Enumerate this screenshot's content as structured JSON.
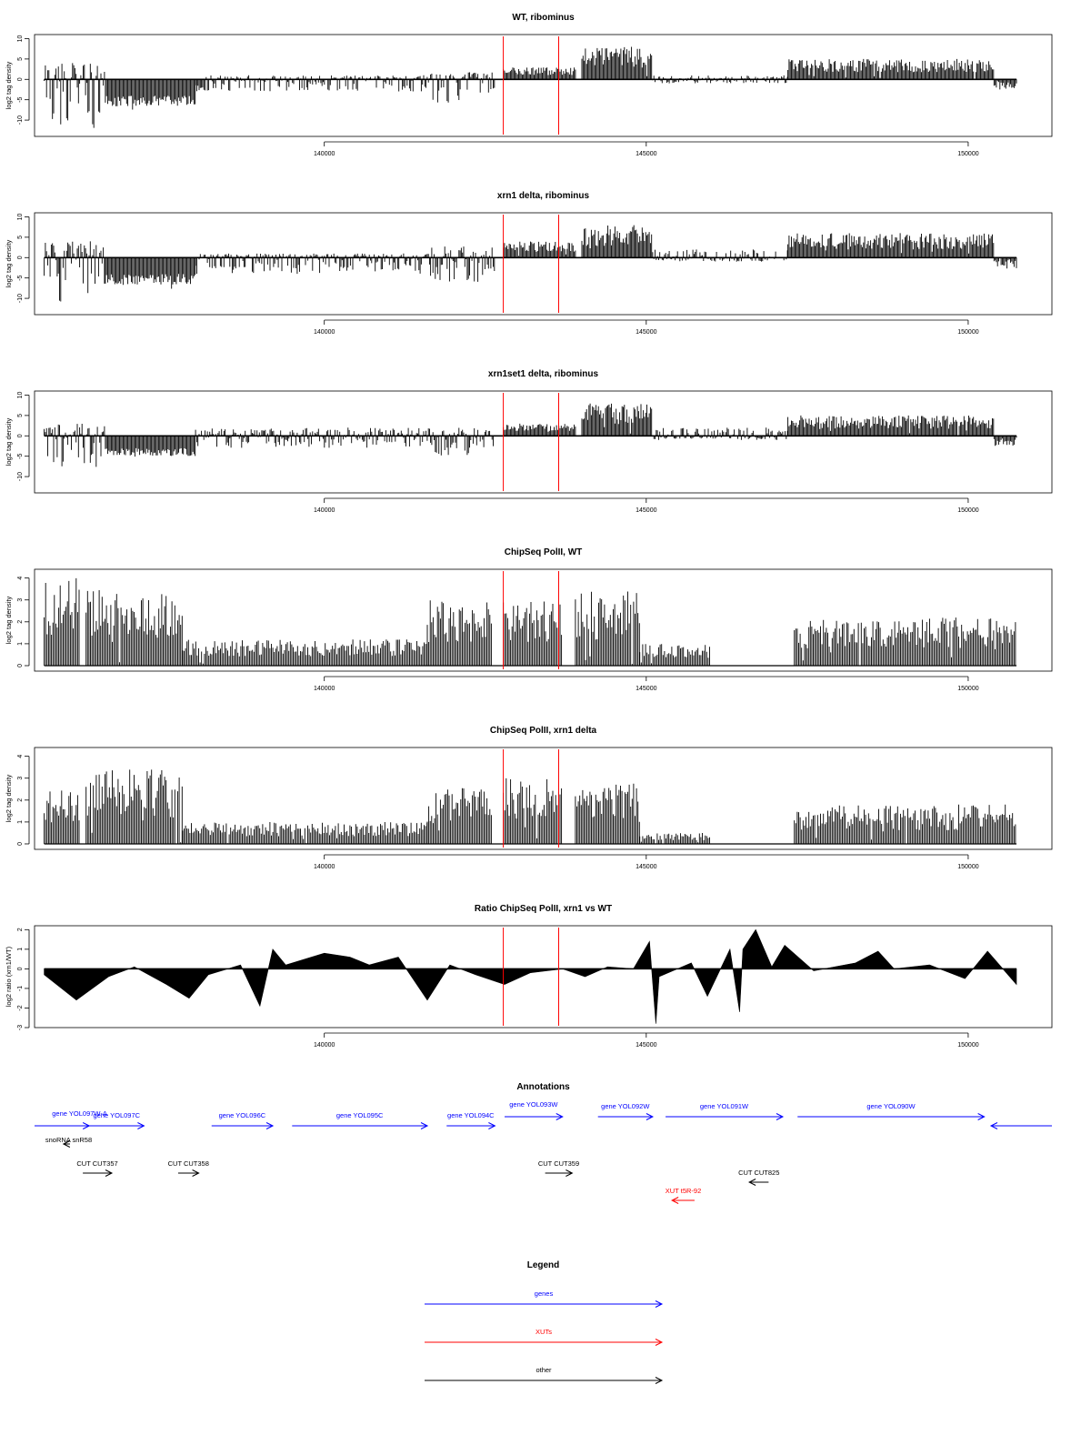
{
  "chart_data": [
    {
      "type": "bar",
      "title": "WT, ribominus",
      "ylabel": "log2 tag density",
      "ylim": [
        -14,
        11
      ],
      "yticks": [
        -10,
        -5,
        0,
        5,
        10
      ],
      "xticks": [
        140000,
        145000,
        150000
      ],
      "xlim": [
        135500,
        151300
      ],
      "markers": [
        142780,
        143640
      ],
      "segments": [
        {
          "x": [
            135650,
            136600
          ],
          "y": [
            -12,
            4
          ]
        },
        {
          "x": [
            136600,
            138000
          ],
          "y": [
            -8,
            -4
          ]
        },
        {
          "x": [
            138000,
            141650
          ],
          "y": [
            -3,
            1
          ]
        },
        {
          "x": [
            141650,
            142650
          ],
          "y": [
            -6,
            2
          ]
        },
        {
          "x": [
            142780,
            143900
          ],
          "y": [
            0,
            3
          ]
        },
        {
          "x": [
            144000,
            145100
          ],
          "y": [
            0,
            8
          ]
        },
        {
          "x": [
            145100,
            147200
          ],
          "y": [
            -1,
            1
          ]
        },
        {
          "x": [
            147200,
            150400
          ],
          "y": [
            0,
            5
          ]
        },
        {
          "x": [
            150400,
            150750
          ],
          "y": [
            -4,
            0
          ]
        }
      ]
    },
    {
      "type": "bar",
      "title": "xrn1 delta, ribominus",
      "ylabel": "log2 tag density",
      "ylim": [
        -14,
        11
      ],
      "yticks": [
        -10,
        -5,
        0,
        5,
        10
      ],
      "xticks": [
        140000,
        145000,
        150000
      ],
      "xlim": [
        135500,
        151300
      ],
      "markers": [
        142780,
        143640
      ],
      "segments": [
        {
          "x": [
            135650,
            136600
          ],
          "y": [
            -11,
            4
          ]
        },
        {
          "x": [
            136600,
            138000
          ],
          "y": [
            -8,
            -4
          ]
        },
        {
          "x": [
            138000,
            141650
          ],
          "y": [
            -4,
            1
          ]
        },
        {
          "x": [
            141650,
            142650
          ],
          "y": [
            -6,
            3
          ]
        },
        {
          "x": [
            142780,
            143900
          ],
          "y": [
            0,
            4
          ]
        },
        {
          "x": [
            144000,
            145100
          ],
          "y": [
            0,
            8
          ]
        },
        {
          "x": [
            145100,
            147200
          ],
          "y": [
            -1,
            2
          ]
        },
        {
          "x": [
            147200,
            150400
          ],
          "y": [
            0,
            6
          ]
        },
        {
          "x": [
            150400,
            150750
          ],
          "y": [
            -4,
            0
          ]
        }
      ]
    },
    {
      "type": "bar",
      "title": "xrn1set1 delta, ribominus",
      "ylabel": "log2 tag density",
      "ylim": [
        -14,
        11
      ],
      "yticks": [
        -10,
        -5,
        0,
        5,
        10
      ],
      "xticks": [
        140000,
        145000,
        150000
      ],
      "xlim": [
        135500,
        151300
      ],
      "markers": [
        142780,
        143640
      ],
      "segments": [
        {
          "x": [
            135650,
            136600
          ],
          "y": [
            -8,
            3
          ]
        },
        {
          "x": [
            136600,
            138000
          ],
          "y": [
            -6,
            -3
          ]
        },
        {
          "x": [
            138000,
            141650
          ],
          "y": [
            -3,
            2
          ]
        },
        {
          "x": [
            141650,
            142650
          ],
          "y": [
            -5,
            2
          ]
        },
        {
          "x": [
            142780,
            143900
          ],
          "y": [
            0,
            3
          ]
        },
        {
          "x": [
            144000,
            145100
          ],
          "y": [
            0,
            8
          ]
        },
        {
          "x": [
            145100,
            147200
          ],
          "y": [
            -1,
            2
          ]
        },
        {
          "x": [
            147200,
            150400
          ],
          "y": [
            0,
            5
          ]
        },
        {
          "x": [
            150400,
            150750
          ],
          "y": [
            -4,
            0
          ]
        }
      ]
    },
    {
      "type": "bar",
      "title": "ChipSeq PolII, WT",
      "ylabel": "log2 tag density",
      "ylim": [
        -0.25,
        4.4
      ],
      "yticks": [
        0,
        1,
        2,
        3,
        4
      ],
      "xticks": [
        140000,
        145000,
        150000
      ],
      "xlim": [
        135500,
        151300
      ],
      "markers": [
        142780,
        143640
      ],
      "segments": [
        {
          "x": [
            135650,
            136200
          ],
          "y": [
            0,
            4
          ]
        },
        {
          "x": [
            136300,
            137800
          ],
          "y": [
            0,
            3.5
          ]
        },
        {
          "x": [
            137800,
            141600
          ],
          "y": [
            0,
            1.2
          ]
        },
        {
          "x": [
            141600,
            142600
          ],
          "y": [
            0,
            3
          ]
        },
        {
          "x": [
            142780,
            143700
          ],
          "y": [
            0,
            3
          ]
        },
        {
          "x": [
            143900,
            144900
          ],
          "y": [
            0,
            3.4
          ]
        },
        {
          "x": [
            144900,
            146000
          ],
          "y": [
            0,
            1
          ]
        },
        {
          "x": [
            147300,
            150750
          ],
          "y": [
            0,
            2.2
          ]
        }
      ]
    },
    {
      "type": "bar",
      "title": "ChipSeq PolII, xrn1 delta",
      "ylabel": "log2 tag density",
      "ylim": [
        -0.25,
        4.4
      ],
      "yticks": [
        0,
        1,
        2,
        3,
        4
      ],
      "xticks": [
        140000,
        145000,
        150000
      ],
      "xlim": [
        135500,
        151300
      ],
      "markers": [
        142780,
        143640
      ],
      "segments": [
        {
          "x": [
            135650,
            136200
          ],
          "y": [
            0,
            2.5
          ]
        },
        {
          "x": [
            136300,
            137800
          ],
          "y": [
            0,
            3.4
          ]
        },
        {
          "x": [
            137800,
            141600
          ],
          "y": [
            0,
            1
          ]
        },
        {
          "x": [
            141600,
            142600
          ],
          "y": [
            0,
            2.6
          ]
        },
        {
          "x": [
            142780,
            143700
          ],
          "y": [
            0,
            3
          ]
        },
        {
          "x": [
            143900,
            144900
          ],
          "y": [
            0,
            2.8
          ]
        },
        {
          "x": [
            144900,
            146000
          ],
          "y": [
            0,
            0.5
          ]
        },
        {
          "x": [
            147300,
            150750
          ],
          "y": [
            0,
            1.8
          ]
        }
      ]
    },
    {
      "type": "area",
      "title": "Ratio ChipSeq PolII, xrn1 vs WT",
      "ylabel": "log2 ratio (xrn1/WT)",
      "ylim": [
        -3,
        2.2
      ],
      "yticks": [
        -3,
        -2,
        -1,
        0,
        1,
        2
      ],
      "xticks": [
        140000,
        145000,
        150000
      ],
      "xlim": [
        135500,
        151300
      ],
      "markers": [
        142780,
        143640
      ],
      "x": [
        135650,
        136150,
        136650,
        137050,
        137550,
        137900,
        138200,
        138700,
        139000,
        139200,
        139400,
        140000,
        140400,
        140700,
        141150,
        141600,
        141950,
        142350,
        142800,
        143200,
        143700,
        144050,
        144400,
        144800,
        145050,
        145150,
        145200,
        145700,
        145950,
        146300,
        146450,
        146500,
        146700,
        146950,
        147150,
        147600,
        148250,
        148600,
        148850,
        149400,
        149950,
        150300,
        150750
      ],
      "y": [
        -0.3,
        -1.6,
        -0.4,
        0.1,
        -0.8,
        -1.5,
        -0.3,
        0.2,
        -1.9,
        1.0,
        0.2,
        0.8,
        0.6,
        0.2,
        0.6,
        -1.6,
        0.2,
        -0.3,
        -0.8,
        -0.2,
        0.0,
        -0.4,
        0.1,
        0.0,
        1.4,
        -2.8,
        -0.4,
        0.3,
        -1.4,
        1.0,
        -2.2,
        1.0,
        2.0,
        0.1,
        1.2,
        -0.1,
        0.3,
        0.9,
        0.0,
        0.2,
        -0.5,
        0.9,
        -0.8
      ]
    }
  ],
  "annotations": {
    "title": "Annotations",
    "items": [
      {
        "label": "gene YOL097W-A",
        "color": "#0000ff",
        "from": 136050,
        "to": 136350
      },
      {
        "label": "gene YOL097C",
        "color": "#0000ff",
        "from": 136350,
        "to": 137200
      },
      {
        "label": "gene YOL096C",
        "color": "#0000ff",
        "from": 138250,
        "to": 139200
      },
      {
        "label": "gene YOL095C",
        "color": "#0000ff",
        "from": 139500,
        "to": 141600
      },
      {
        "label": "gene YOL094C",
        "color": "#0000ff",
        "from": 141900,
        "to": 142650
      },
      {
        "label": "gene YOL093W",
        "color": "#0000ff",
        "from": 142800,
        "to": 143700
      },
      {
        "label": "gene YOL092W",
        "color": "#0000ff",
        "from": 144250,
        "to": 145100
      },
      {
        "label": "gene YOL091W",
        "color": "#0000ff",
        "from": 145300,
        "to": 147120
      },
      {
        "label": "gene YOL090W",
        "color": "#0000ff",
        "from": 147350,
        "to": 150250
      },
      {
        "label": "snoRNA snR58",
        "color": "#000000",
        "from": 136050,
        "to": 135950
      },
      {
        "label": "CUT CUT357",
        "color": "#000000",
        "from": 136250,
        "to": 136700
      },
      {
        "label": "CUT CUT358",
        "color": "#000000",
        "from": 137730,
        "to": 138050
      },
      {
        "label": "CUT CUT359",
        "color": "#000000",
        "from": 143430,
        "to": 143850
      },
      {
        "label": "CUT CUT825",
        "color": "#000000",
        "from": 146900,
        "to": 146600
      },
      {
        "label": "XUT t5R-92",
        "color": "#ff0000",
        "from": 145750,
        "to": 145400
      }
    ]
  },
  "legend": {
    "title": "Legend",
    "entries": [
      {
        "label": "genes",
        "color": "#0000ff"
      },
      {
        "label": "XUTs",
        "color": "#ff0000"
      },
      {
        "label": "other",
        "color": "#000000"
      }
    ]
  }
}
